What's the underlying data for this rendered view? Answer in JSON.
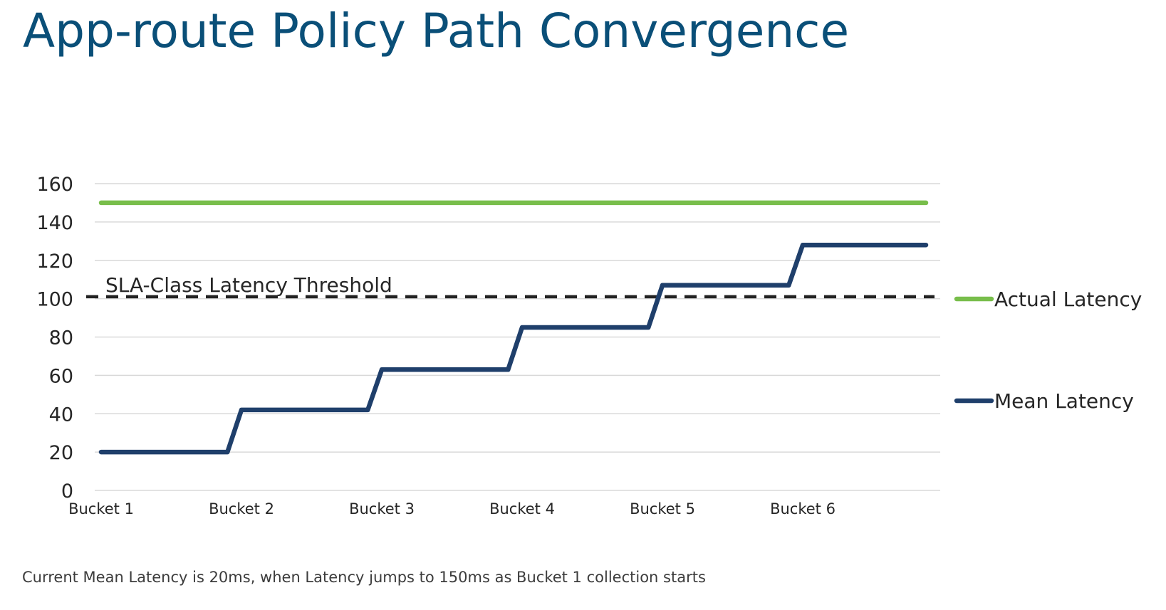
{
  "slide": {
    "title": "App-route Policy Path Convergence",
    "caption": "Current Mean Latency is 20ms, when Latency jumps to 150ms as Bucket 1 collection starts"
  },
  "chart_data": {
    "type": "line",
    "title": "",
    "xlabel": "",
    "ylabel": "",
    "ylim": [
      0,
      160
    ],
    "yticks": [
      0,
      20,
      40,
      60,
      80,
      100,
      120,
      140,
      160
    ],
    "categories": [
      "Bucket 1",
      "Bucket 2",
      "Bucket 3",
      "Bucket 4",
      "Bucket 5",
      "Bucket 6"
    ],
    "grid": true,
    "legend_position": "right",
    "series": [
      {
        "name": "Actual Latency",
        "color": "#78be4b",
        "points": [
          [
            0,
            150
          ],
          [
            6,
            150
          ]
        ]
      },
      {
        "name": "Mean Latency",
        "color": "#1f3f6b",
        "points": [
          [
            0,
            20
          ],
          [
            0.9,
            20
          ],
          [
            1.0,
            42
          ],
          [
            1.9,
            42
          ],
          [
            2.0,
            63
          ],
          [
            2.9,
            63
          ],
          [
            3.0,
            85
          ],
          [
            3.9,
            85
          ],
          [
            4.0,
            107
          ],
          [
            4.9,
            107
          ],
          [
            5.0,
            128
          ],
          [
            6.0,
            128
          ]
        ]
      }
    ],
    "threshold": {
      "label": "SLA-Class Latency Threshold",
      "value": 101,
      "color": "#222222",
      "style": "dashed"
    }
  }
}
